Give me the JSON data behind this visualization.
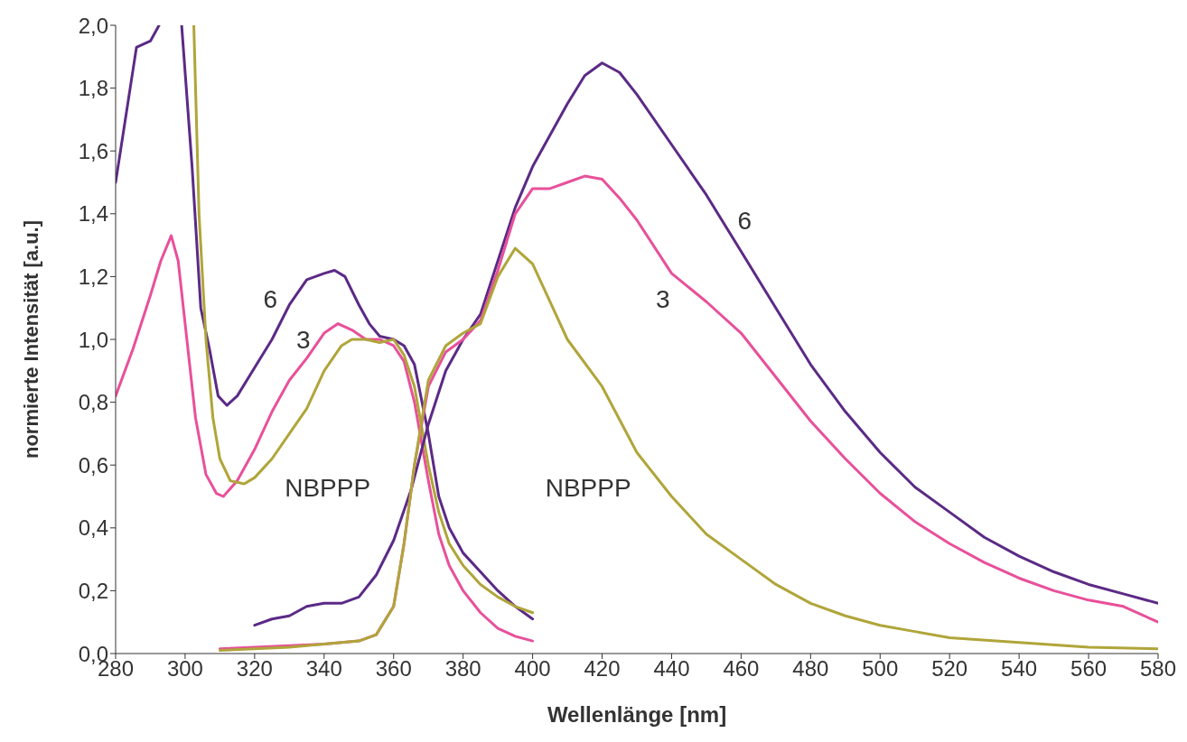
{
  "chart_data": {
    "type": "line",
    "xlabel": "Wellenlänge [nm]",
    "ylabel": "normierte Intensität [a.u.]",
    "xlim": [
      280,
      580
    ],
    "xticks": [
      280,
      300,
      320,
      340,
      360,
      380,
      400,
      420,
      440,
      460,
      480,
      500,
      520,
      540,
      560,
      580
    ],
    "ylim": [
      0,
      2
    ],
    "yticks": [
      {
        "value": 0,
        "label": "0,0"
      },
      {
        "value": 0.2,
        "label": "0,2"
      },
      {
        "value": 0.4,
        "label": "0,4"
      },
      {
        "value": 0.6,
        "label": "0,6"
      },
      {
        "value": 0.8,
        "label": "0,8"
      },
      {
        "value": 1,
        "label": "1,0"
      },
      {
        "value": 1.2,
        "label": "1,2"
      },
      {
        "value": 1.4,
        "label": "1,4"
      },
      {
        "value": 1.6,
        "label": "1,6"
      },
      {
        "value": 1.8,
        "label": "1,8"
      },
      {
        "value": 2,
        "label": "2,0"
      }
    ],
    "grid": false,
    "marker": "none",
    "line_style": "solid",
    "series": [
      {
        "name": "6",
        "color": "#5b2a86",
        "x": [
          280,
          286,
          290,
          292.5,
          296,
          299,
          302,
          304.5,
          307,
          309.5,
          312,
          315,
          320,
          325,
          330,
          335,
          340,
          343,
          346,
          350,
          353,
          356,
          360,
          363,
          366,
          370,
          373,
          376,
          380,
          385,
          390,
          395,
          400
        ],
        "values": [
          1.5,
          1.93,
          1.95,
          2.0,
          null,
          2.0,
          1.55,
          1.1,
          0.97,
          0.82,
          0.79,
          0.82,
          0.91,
          1.0,
          1.11,
          1.19,
          1.21,
          1.22,
          1.2,
          1.11,
          1.05,
          1.01,
          1.0,
          0.98,
          0.92,
          0.7,
          0.5,
          0.4,
          0.32,
          0.26,
          0.2,
          0.15,
          0.11
        ]
      },
      {
        "name": "3",
        "color": "#e8509a",
        "x": [
          280,
          285,
          290,
          293,
          296,
          298,
          300,
          303,
          306,
          309,
          311,
          315,
          320,
          325,
          330,
          335,
          340,
          344,
          348,
          352,
          356,
          360,
          363,
          366,
          370,
          373,
          376,
          380,
          385,
          390,
          395,
          400
        ],
        "values": [
          0.82,
          0.97,
          1.14,
          1.25,
          1.33,
          1.25,
          1.05,
          0.75,
          0.57,
          0.51,
          0.5,
          0.55,
          0.65,
          0.77,
          0.87,
          0.94,
          1.02,
          1.05,
          1.03,
          1.0,
          1.0,
          0.98,
          0.93,
          0.8,
          0.55,
          0.38,
          0.28,
          0.2,
          0.13,
          0.08,
          0.055,
          0.04
        ]
      },
      {
        "name": "NBPPP",
        "color": "#b0a53a",
        "x": [
          302.5,
          304,
          306,
          308,
          310,
          313,
          317,
          320,
          325,
          330,
          335,
          340,
          345,
          348,
          352,
          356,
          360,
          363,
          366,
          370,
          373,
          376,
          380,
          385,
          390,
          395,
          400
        ],
        "values": [
          2.0,
          1.4,
          1.0,
          0.75,
          0.62,
          0.55,
          0.54,
          0.56,
          0.62,
          0.7,
          0.78,
          0.9,
          0.98,
          1.0,
          1.0,
          0.99,
          1.0,
          0.95,
          0.85,
          0.6,
          0.45,
          0.35,
          0.28,
          0.22,
          0.18,
          0.15,
          0.13
        ]
      },
      {
        "name": "6",
        "color": "#5b2a86",
        "x": [
          320,
          325,
          330,
          335,
          340,
          345,
          350,
          355,
          360,
          365,
          370,
          375,
          380,
          385,
          390,
          395,
          400,
          405,
          410,
          415,
          420,
          425,
          430,
          440,
          450,
          460,
          470,
          480,
          490,
          500,
          510,
          520,
          530,
          540,
          550,
          560,
          570,
          580
        ],
        "values": [
          0.09,
          0.11,
          0.12,
          0.15,
          0.16,
          0.16,
          0.18,
          0.25,
          0.36,
          0.52,
          0.73,
          0.9,
          1.0,
          1.08,
          1.25,
          1.42,
          1.55,
          1.65,
          1.75,
          1.84,
          1.88,
          1.85,
          1.78,
          1.62,
          1.46,
          1.28,
          1.1,
          0.92,
          0.77,
          0.64,
          0.53,
          0.45,
          0.37,
          0.31,
          0.26,
          0.22,
          0.19,
          0.16
        ]
      },
      {
        "name": "3",
        "color": "#e8509a",
        "x": [
          310,
          320,
          340,
          350,
          355,
          360,
          363,
          366,
          370,
          375,
          380,
          385,
          390,
          395,
          400,
          405,
          410,
          415,
          420,
          425,
          430,
          440,
          450,
          460,
          470,
          480,
          490,
          500,
          510,
          520,
          530,
          540,
          550,
          560,
          570,
          580
        ],
        "values": [
          0.015,
          0.02,
          0.03,
          0.04,
          0.06,
          0.15,
          0.35,
          0.6,
          0.85,
          0.96,
          1.0,
          1.06,
          1.22,
          1.4,
          1.48,
          1.48,
          1.5,
          1.52,
          1.51,
          1.45,
          1.38,
          1.21,
          1.12,
          1.02,
          0.88,
          0.74,
          0.62,
          0.51,
          0.42,
          0.35,
          0.29,
          0.24,
          0.2,
          0.17,
          0.15,
          0.1
        ]
      },
      {
        "name": "NBPPP",
        "color": "#b0a53a",
        "x": [
          310,
          330,
          340,
          350,
          355,
          360,
          363,
          366,
          370,
          375,
          380,
          385,
          390,
          395,
          400,
          405,
          410,
          420,
          430,
          440,
          450,
          460,
          470,
          480,
          490,
          500,
          510,
          520,
          540,
          560,
          580
        ],
        "values": [
          0.01,
          0.02,
          0.03,
          0.04,
          0.06,
          0.15,
          0.35,
          0.6,
          0.87,
          0.98,
          1.02,
          1.05,
          1.2,
          1.29,
          1.24,
          1.12,
          1.0,
          0.85,
          0.64,
          0.5,
          0.38,
          0.3,
          0.22,
          0.16,
          0.12,
          0.09,
          0.07,
          0.05,
          0.035,
          0.02,
          0.015
        ]
      }
    ]
  }
}
